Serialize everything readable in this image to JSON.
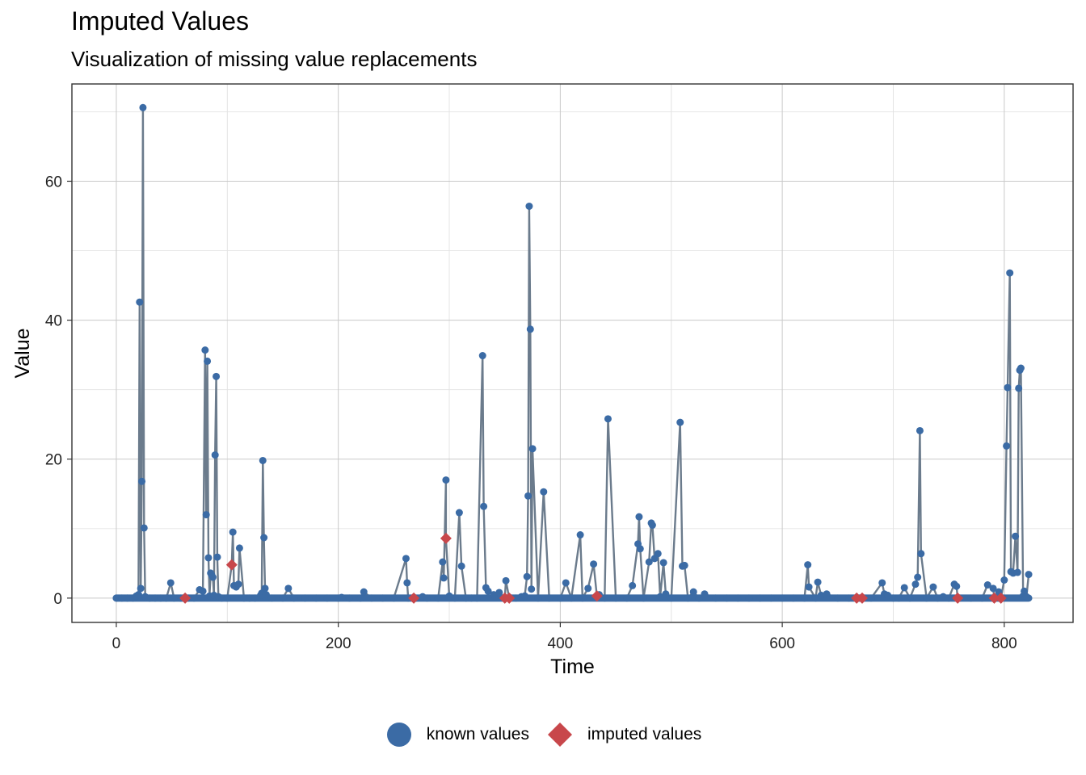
{
  "chart_data": {
    "type": "line",
    "title": "Imputed Values",
    "subtitle": "Visualization of missing value replacements",
    "xlabel": "Time",
    "ylabel": "Value",
    "xlim": [
      -40,
      862
    ],
    "ylim": [
      -3.5,
      74
    ],
    "x_ticks": [
      0,
      200,
      400,
      600,
      800
    ],
    "y_ticks": [
      0,
      20,
      40,
      60
    ],
    "grid": true,
    "colors": {
      "known": "#3b6ba5",
      "imputed": "#c8474b",
      "line": "#6b7b8c"
    },
    "series": [
      {
        "name": "known values",
        "marker": "circle",
        "points": [
          [
            0,
            0
          ],
          [
            5,
            0
          ],
          [
            10,
            0
          ],
          [
            15,
            0
          ],
          [
            18,
            0.3
          ],
          [
            20,
            0.5
          ],
          [
            21,
            42.6
          ],
          [
            22,
            1.4
          ],
          [
            23,
            16.8
          ],
          [
            24,
            70.6
          ],
          [
            25,
            10.1
          ],
          [
            26,
            0.2
          ],
          [
            30,
            0
          ],
          [
            35,
            0
          ],
          [
            40,
            0
          ],
          [
            45,
            0
          ],
          [
            49,
            2.2
          ],
          [
            52,
            0
          ],
          [
            58,
            0
          ],
          [
            65,
            0
          ],
          [
            70,
            0
          ],
          [
            75,
            1.2
          ],
          [
            78,
            1
          ],
          [
            80,
            35.7
          ],
          [
            81,
            12
          ],
          [
            82,
            34.1
          ],
          [
            83,
            5.8
          ],
          [
            84,
            0.3
          ],
          [
            85,
            3.6
          ],
          [
            86,
            3.3
          ],
          [
            87,
            3
          ],
          [
            88,
            0.4
          ],
          [
            89,
            20.6
          ],
          [
            90,
            31.9
          ],
          [
            91,
            5.9
          ],
          [
            92,
            0.2
          ],
          [
            95,
            0
          ],
          [
            100,
            0
          ],
          [
            105,
            9.5
          ],
          [
            106,
            1.8
          ],
          [
            108,
            1.6
          ],
          [
            110,
            2
          ],
          [
            111,
            7.2
          ],
          [
            115,
            0
          ],
          [
            120,
            0
          ],
          [
            125,
            0
          ],
          [
            130,
            0.4
          ],
          [
            131,
            0.7
          ],
          [
            132,
            19.8
          ],
          [
            133,
            8.7
          ],
          [
            134,
            1.4
          ],
          [
            135,
            0.5
          ],
          [
            140,
            0
          ],
          [
            150,
            0
          ],
          [
            155,
            1.4
          ],
          [
            160,
            0
          ],
          [
            170,
            0
          ],
          [
            180,
            0
          ],
          [
            190,
            0
          ],
          [
            200,
            0
          ],
          [
            203,
            0.1
          ],
          [
            210,
            0
          ],
          [
            220,
            0
          ],
          [
            223,
            0.9
          ],
          [
            230,
            0
          ],
          [
            240,
            0
          ],
          [
            250,
            0
          ],
          [
            261,
            5.7
          ],
          [
            262,
            2.2
          ],
          [
            263,
            0
          ],
          [
            270,
            0
          ],
          [
            276,
            0.2
          ],
          [
            280,
            0
          ],
          [
            290,
            0
          ],
          [
            294,
            5.2
          ],
          [
            295,
            2.9
          ],
          [
            297,
            17
          ],
          [
            300,
            0.3
          ],
          [
            305,
            0
          ],
          [
            309,
            12.3
          ],
          [
            311,
            4.6
          ],
          [
            315,
            0
          ],
          [
            320,
            0
          ],
          [
            325,
            0
          ],
          [
            330,
            34.9
          ],
          [
            331,
            13.2
          ],
          [
            333,
            1.5
          ],
          [
            335,
            1
          ],
          [
            340,
            0.5
          ],
          [
            345,
            0.8
          ],
          [
            351,
            2.5
          ],
          [
            355,
            0
          ],
          [
            360,
            0
          ],
          [
            365,
            0.2
          ],
          [
            368,
            0.3
          ],
          [
            370,
            3.1
          ],
          [
            371,
            14.7
          ],
          [
            372,
            56.4
          ],
          [
            373,
            38.7
          ],
          [
            374,
            1.3
          ],
          [
            375,
            21.5
          ],
          [
            380,
            0
          ],
          [
            385,
            15.3
          ],
          [
            390,
            0
          ],
          [
            400,
            0
          ],
          [
            405,
            2.2
          ],
          [
            410,
            0
          ],
          [
            418,
            9.1
          ],
          [
            420,
            0
          ],
          [
            425,
            1.4
          ],
          [
            430,
            4.9
          ],
          [
            435,
            0.5
          ],
          [
            440,
            0
          ],
          [
            443,
            25.8
          ],
          [
            450,
            0
          ],
          [
            460,
            0
          ],
          [
            465,
            1.8
          ],
          [
            470,
            7.8
          ],
          [
            471,
            11.7
          ],
          [
            472,
            7.1
          ],
          [
            475,
            0
          ],
          [
            480,
            5.2
          ],
          [
            482,
            10.8
          ],
          [
            483,
            10.5
          ],
          [
            485,
            5.7
          ],
          [
            488,
            6.4
          ],
          [
            490,
            0.2
          ],
          [
            493,
            5.1
          ],
          [
            495,
            0.6
          ],
          [
            500,
            0
          ],
          [
            508,
            25.3
          ],
          [
            510,
            4.6
          ],
          [
            512,
            4.7
          ],
          [
            515,
            0
          ],
          [
            520,
            0.9
          ],
          [
            525,
            0
          ],
          [
            530,
            0.6
          ],
          [
            540,
            0
          ],
          [
            550,
            0
          ],
          [
            560,
            0
          ],
          [
            570,
            0
          ],
          [
            580,
            0
          ],
          [
            590,
            0
          ],
          [
            600,
            0
          ],
          [
            610,
            0
          ],
          [
            620,
            0
          ],
          [
            623,
            4.8
          ],
          [
            624,
            1.6
          ],
          [
            630,
            0
          ],
          [
            632,
            2.3
          ],
          [
            635,
            0.4
          ],
          [
            640,
            0.6
          ],
          [
            650,
            0
          ],
          [
            660,
            0
          ],
          [
            670,
            0
          ],
          [
            680,
            0
          ],
          [
            690,
            2.2
          ],
          [
            692,
            0.6
          ],
          [
            695,
            0.4
          ],
          [
            700,
            0
          ],
          [
            705,
            0
          ],
          [
            710,
            1.5
          ],
          [
            715,
            0
          ],
          [
            720,
            2
          ],
          [
            722,
            3
          ],
          [
            724,
            24.1
          ],
          [
            725,
            6.4
          ],
          [
            730,
            0
          ],
          [
            736,
            1.6
          ],
          [
            740,
            0
          ],
          [
            745,
            0.2
          ],
          [
            750,
            0
          ],
          [
            755,
            2
          ],
          [
            757,
            1.7
          ],
          [
            760,
            0
          ],
          [
            770,
            0
          ],
          [
            780,
            0
          ],
          [
            785,
            1.9
          ],
          [
            790,
            1.4
          ],
          [
            795,
            0.9
          ],
          [
            800,
            2.6
          ],
          [
            802,
            21.9
          ],
          [
            803,
            30.3
          ],
          [
            805,
            46.8
          ],
          [
            806,
            3.8
          ],
          [
            808,
            3.6
          ],
          [
            810,
            8.9
          ],
          [
            812,
            3.7
          ],
          [
            813,
            30.2
          ],
          [
            814,
            32.8
          ],
          [
            815,
            33.1
          ],
          [
            817,
            0.3
          ],
          [
            818,
            1
          ],
          [
            820,
            0.2
          ],
          [
            822,
            3.4
          ]
        ]
      },
      {
        "name": "imputed values",
        "marker": "diamond",
        "points": [
          [
            62,
            0
          ],
          [
            104,
            4.8
          ],
          [
            268,
            0
          ],
          [
            297,
            8.6
          ],
          [
            350,
            0
          ],
          [
            354,
            0
          ],
          [
            433,
            0.3
          ],
          [
            667,
            0
          ],
          [
            672,
            0
          ],
          [
            758,
            0
          ],
          [
            791,
            0
          ],
          [
            797,
            0
          ]
        ]
      }
    ],
    "legend": [
      {
        "label": "known values",
        "shape": "circle",
        "color": "#3b6ba5"
      },
      {
        "label": "imputed values",
        "shape": "diamond",
        "color": "#c8474b"
      }
    ],
    "legend_position": "bottom"
  }
}
